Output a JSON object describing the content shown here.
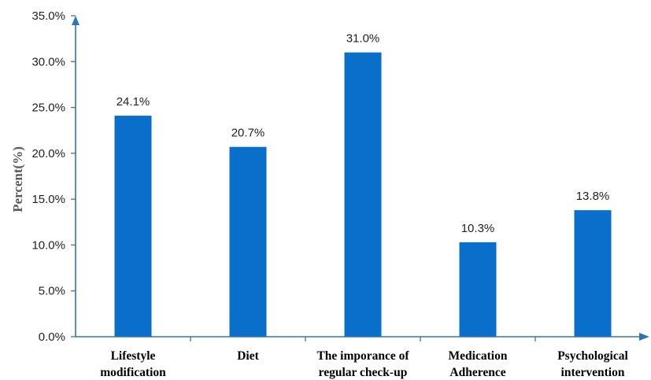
{
  "chart_data": {
    "type": "bar",
    "categories": [
      [
        "Lifestyle",
        "modification"
      ],
      [
        "Diet"
      ],
      [
        "The imporance of",
        "regular check-up"
      ],
      [
        "Medication",
        "Adherence"
      ],
      [
        "Psychological",
        "intervention"
      ]
    ],
    "values": [
      24.1,
      20.7,
      31.0,
      10.3,
      13.8
    ],
    "data_labels": [
      "24.1%",
      "20.7%",
      "31.0%",
      "10.3%",
      "13.8%"
    ],
    "ylabel": "Percent(%)",
    "ylim": [
      0,
      35
    ],
    "yticks": [
      "0.0%",
      "5.0%",
      "10.0%",
      "15.0%",
      "20.0%",
      "25.0%",
      "30.0%",
      "35.0%"
    ],
    "grid": false,
    "legend": "none",
    "bar_color": "#0A6FCB",
    "axis_color": "#2E75B6"
  }
}
